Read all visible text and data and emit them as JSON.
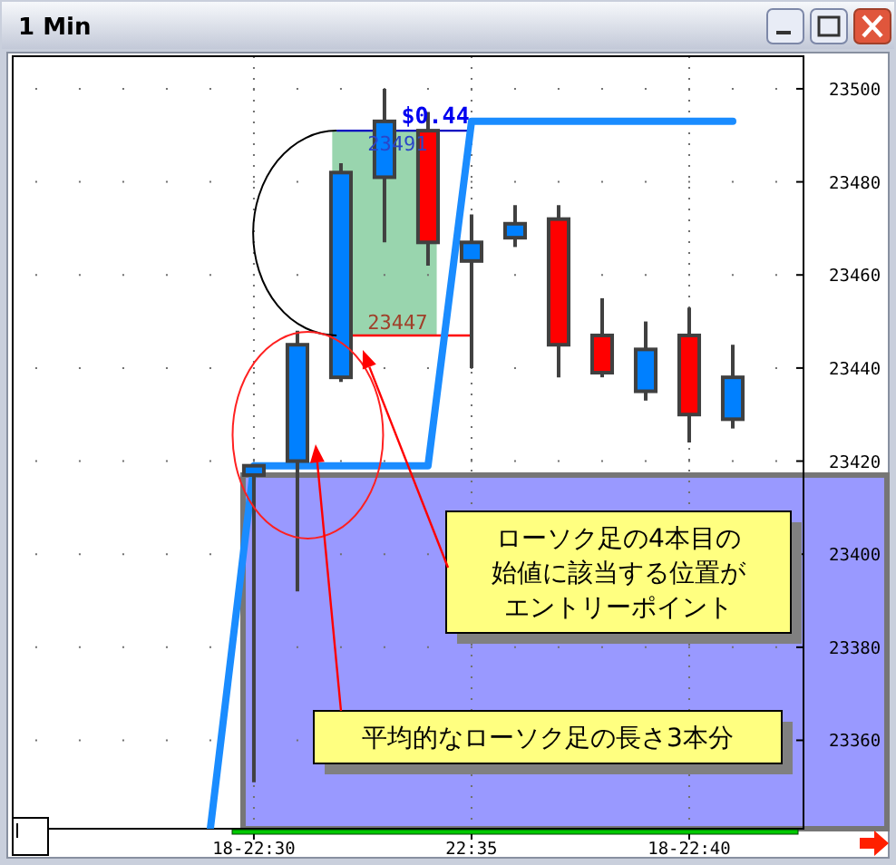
{
  "chart_data": {
    "type": "candlestick",
    "title": "1 Min",
    "categories": [
      null,
      "18-22:30",
      null,
      null,
      null,
      null,
      "22:35",
      null,
      null,
      null,
      null,
      "18-22:40",
      null
    ],
    "ohlc": [
      null,
      [
        23417,
        23419,
        23351,
        23419
      ],
      [
        23420,
        23448,
        23392,
        23445
      ],
      [
        23438,
        23484,
        23437,
        23482
      ],
      [
        23481,
        23500,
        23467,
        23493
      ],
      [
        23491,
        23495,
        23462,
        23467
      ],
      [
        23463,
        23473,
        23440,
        23467
      ],
      [
        23468,
        23475,
        23466,
        23471
      ],
      [
        23472,
        23475,
        23438,
        23445
      ],
      [
        23447,
        23455,
        23438,
        23439
      ],
      [
        23435,
        23450,
        23433,
        23444
      ],
      [
        23447,
        23453,
        23424,
        23430
      ],
      [
        23429,
        23445,
        23427,
        23438
      ]
    ],
    "colors": [
      null,
      "#0080ff",
      "#0080ff",
      "#0080ff",
      "#0080ff",
      "#ff0000",
      "#0080ff",
      "#0080ff",
      "#ff0000",
      "#ff0000",
      "#0080ff",
      "#ff0000",
      "#0080ff"
    ],
    "series": [
      {
        "type": "line",
        "color": "#1a8cff",
        "values": [
          23341,
          23419,
          23419,
          23419,
          23419,
          23419,
          23493,
          23493,
          23493,
          23493,
          23493,
          23493,
          23493
        ]
      }
    ],
    "ylim": [
      23341,
      23507
    ],
    "yticks": [
      23360,
      23380,
      23400,
      23420,
      23440,
      23460,
      23480,
      23500
    ],
    "grid": true,
    "bands": [
      {
        "axis": "y",
        "from": 23341,
        "to": 23417,
        "color": "#9999ff"
      },
      {
        "axis": "y",
        "from": 23447,
        "to": 23491,
        "color": "#99d5ae"
      }
    ],
    "ref_lines": [
      {
        "axis": "y",
        "value": 23491,
        "color": "#0000c0"
      },
      {
        "axis": "y",
        "value": 23447,
        "color": "#ff0000"
      }
    ],
    "annotations": [
      {
        "text": "$0.44",
        "y": 23491
      },
      {
        "text": "23491",
        "y": 23491
      },
      {
        "text": "23447",
        "y": 23447
      },
      "ローソク足の4本目の始値に該当する位置がエントリーポイント",
      "平均的なローソク足の長さ3本分"
    ]
  }
}
